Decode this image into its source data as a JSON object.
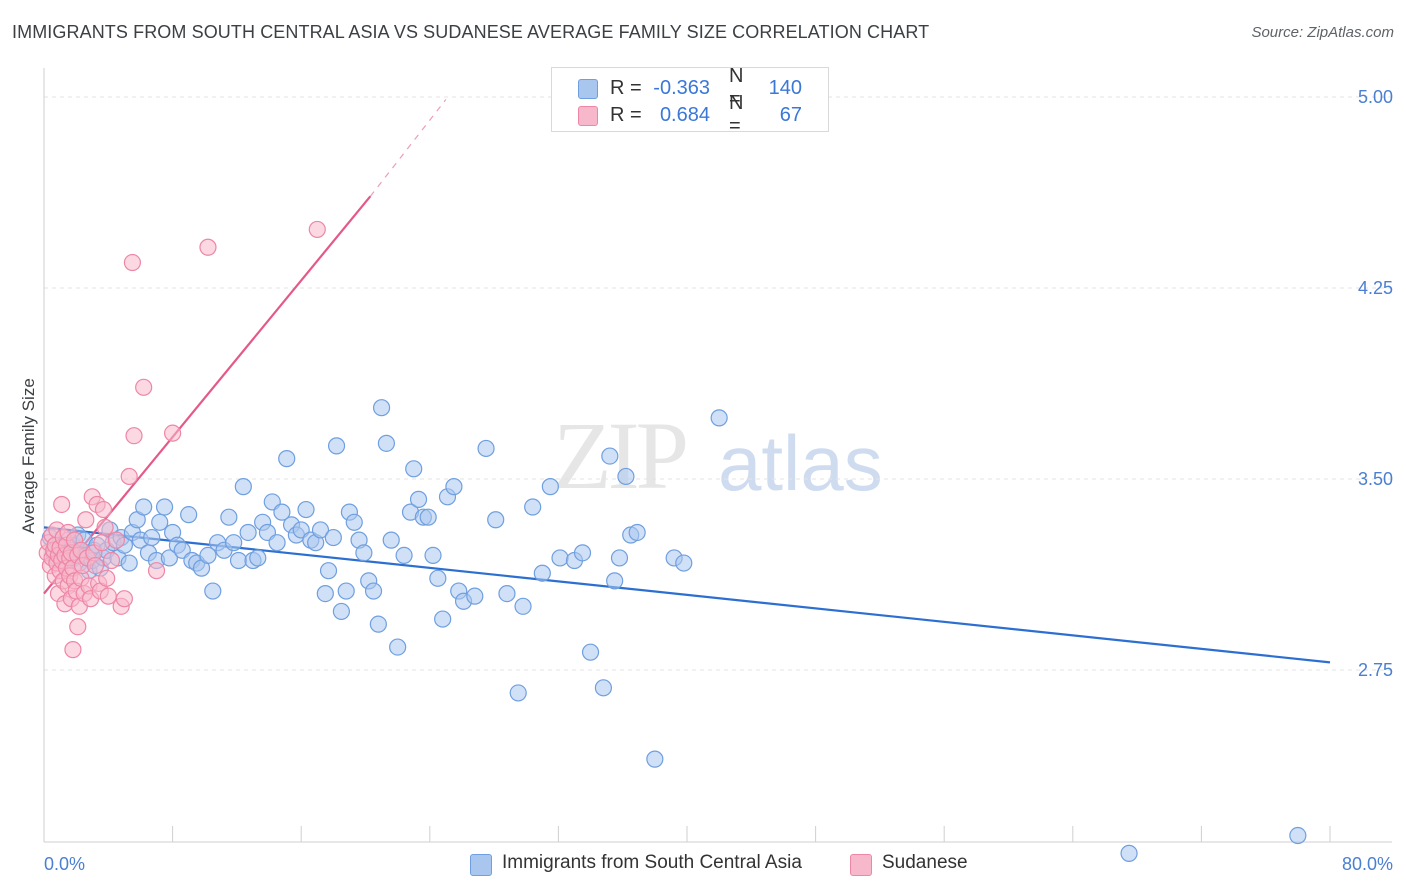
{
  "header": {
    "title": "IMMIGRANTS FROM SOUTH CENTRAL ASIA VS SUDANESE AVERAGE FAMILY SIZE CORRELATION CHART",
    "source": "Source: ZipAtlas.com"
  },
  "watermark": {
    "zip": "ZIP",
    "atlas": "atlas"
  },
  "stats_legend": [
    {
      "r_label": "R =",
      "r_value": "-0.363",
      "n_label": "N =",
      "n_value": "140",
      "color": "#a9c6ef",
      "border": "#6f9fe0"
    },
    {
      "r_label": "R =",
      "r_value": "0.684",
      "n_label": "N =",
      "n_value": "67",
      "color": "#f7b8cb",
      "border": "#ee86a6"
    }
  ],
  "bottom_legend": [
    {
      "label": "Immigrants from South Central Asia",
      "color": "#a9c6ef",
      "border": "#6f9fe0"
    },
    {
      "label": "Sudanese",
      "color": "#f7b8cb",
      "border": "#ee86a6"
    }
  ],
  "chart_data": {
    "type": "scatter",
    "title": "IMMIGRANTS FROM SOUTH CENTRAL ASIA VS SUDANESE AVERAGE FAMILY SIZE CORRELATION CHART",
    "xlabel": "",
    "ylabel": "Average Family Size",
    "xlim": [
      0,
      80
    ],
    "ylim": [
      2.0,
      5.1
    ],
    "x_tick_labels": [
      "0.0%",
      "80.0%"
    ],
    "y_ticks": [
      2.75,
      3.5,
      4.25,
      5.0
    ],
    "y_tick_labels": [
      "2.75",
      "3.50",
      "4.25",
      "5.00"
    ],
    "grid": true,
    "series": [
      {
        "name": "Immigrants from South Central Asia",
        "color": "#6f9fe0",
        "fill": "#a9c6ef",
        "line_color": "#2d6fd1",
        "trend": {
          "x": [
            0,
            80
          ],
          "y": [
            3.31,
            2.78
          ]
        },
        "points": [
          [
            0.4,
            3.27
          ],
          [
            0.6,
            3.21
          ],
          [
            0.8,
            3.19
          ],
          [
            0.9,
            3.24
          ],
          [
            1.0,
            3.21
          ],
          [
            1.1,
            3.18
          ],
          [
            1.2,
            3.23
          ],
          [
            1.3,
            3.2
          ],
          [
            1.4,
            3.21
          ],
          [
            1.5,
            3.26
          ],
          [
            1.6,
            3.18
          ],
          [
            1.7,
            3.22
          ],
          [
            1.8,
            3.24
          ],
          [
            1.9,
            3.19
          ],
          [
            2.0,
            3.21
          ],
          [
            2.1,
            3.28
          ],
          [
            2.2,
            3.17
          ],
          [
            2.3,
            3.22
          ],
          [
            2.5,
            3.26
          ],
          [
            2.6,
            3.2
          ],
          [
            2.8,
            3.14
          ],
          [
            3.0,
            3.18
          ],
          [
            3.1,
            3.22
          ],
          [
            3.3,
            3.24
          ],
          [
            3.5,
            3.15
          ],
          [
            3.7,
            3.19
          ],
          [
            3.9,
            3.22
          ],
          [
            4.1,
            3.3
          ],
          [
            4.3,
            3.25
          ],
          [
            4.6,
            3.19
          ],
          [
            4.8,
            3.27
          ],
          [
            5.0,
            3.24
          ],
          [
            5.3,
            3.17
          ],
          [
            5.5,
            3.29
          ],
          [
            5.8,
            3.34
          ],
          [
            6.0,
            3.26
          ],
          [
            6.2,
            3.39
          ],
          [
            6.5,
            3.21
          ],
          [
            6.7,
            3.27
          ],
          [
            7.0,
            3.18
          ],
          [
            7.2,
            3.33
          ],
          [
            7.5,
            3.39
          ],
          [
            7.8,
            3.19
          ],
          [
            8.0,
            3.29
          ],
          [
            8.3,
            3.24
          ],
          [
            8.6,
            3.22
          ],
          [
            9.0,
            3.36
          ],
          [
            9.2,
            3.18
          ],
          [
            9.5,
            3.17
          ],
          [
            9.8,
            3.15
          ],
          [
            10.2,
            3.2
          ],
          [
            10.5,
            3.06
          ],
          [
            10.8,
            3.25
          ],
          [
            11.2,
            3.22
          ],
          [
            11.5,
            3.35
          ],
          [
            11.8,
            3.25
          ],
          [
            12.1,
            3.18
          ],
          [
            12.4,
            3.47
          ],
          [
            12.7,
            3.29
          ],
          [
            13.0,
            3.18
          ],
          [
            13.3,
            3.19
          ],
          [
            13.6,
            3.33
          ],
          [
            13.9,
            3.29
          ],
          [
            14.2,
            3.41
          ],
          [
            14.5,
            3.25
          ],
          [
            14.8,
            3.37
          ],
          [
            15.1,
            3.58
          ],
          [
            15.4,
            3.32
          ],
          [
            15.7,
            3.28
          ],
          [
            16.0,
            3.3
          ],
          [
            16.3,
            3.38
          ],
          [
            16.6,
            3.26
          ],
          [
            16.9,
            3.25
          ],
          [
            17.2,
            3.3
          ],
          [
            17.5,
            3.05
          ],
          [
            17.7,
            3.14
          ],
          [
            18.0,
            3.27
          ],
          [
            18.2,
            3.63
          ],
          [
            18.5,
            2.98
          ],
          [
            18.8,
            3.06
          ],
          [
            19.0,
            3.37
          ],
          [
            19.3,
            3.33
          ],
          [
            19.6,
            3.26
          ],
          [
            19.9,
            3.21
          ],
          [
            20.2,
            3.1
          ],
          [
            20.5,
            3.06
          ],
          [
            20.8,
            2.93
          ],
          [
            21.0,
            3.78
          ],
          [
            21.3,
            3.64
          ],
          [
            21.6,
            3.26
          ],
          [
            22.0,
            2.84
          ],
          [
            22.4,
            3.2
          ],
          [
            22.8,
            3.37
          ],
          [
            23.0,
            3.54
          ],
          [
            23.3,
            3.42
          ],
          [
            23.6,
            3.35
          ],
          [
            23.9,
            3.35
          ],
          [
            24.2,
            3.2
          ],
          [
            24.5,
            3.11
          ],
          [
            24.8,
            2.95
          ],
          [
            25.1,
            3.43
          ],
          [
            25.5,
            3.47
          ],
          [
            25.8,
            3.06
          ],
          [
            26.1,
            3.02
          ],
          [
            26.8,
            3.04
          ],
          [
            27.5,
            3.62
          ],
          [
            28.1,
            3.34
          ],
          [
            28.8,
            3.05
          ],
          [
            29.5,
            2.66
          ],
          [
            29.8,
            3.0
          ],
          [
            30.4,
            3.39
          ],
          [
            31.0,
            3.13
          ],
          [
            31.5,
            3.47
          ],
          [
            32.1,
            3.19
          ],
          [
            33.0,
            3.18
          ],
          [
            33.5,
            3.21
          ],
          [
            34.0,
            2.82
          ],
          [
            34.8,
            2.68
          ],
          [
            35.2,
            3.59
          ],
          [
            35.5,
            3.1
          ],
          [
            35.8,
            3.19
          ],
          [
            36.2,
            3.51
          ],
          [
            36.5,
            3.28
          ],
          [
            36.9,
            3.29
          ],
          [
            38.0,
            2.4
          ],
          [
            39.2,
            3.19
          ],
          [
            39.8,
            3.17
          ],
          [
            42.0,
            3.74
          ],
          [
            67.5,
            2.03
          ],
          [
            78.0,
            2.1
          ]
        ]
      },
      {
        "name": "Sudanese",
        "color": "#ee86a6",
        "fill": "#f7b8cb",
        "line_color": "#e5588a",
        "trend": {
          "x": [
            0,
            20.3
          ],
          "y": [
            3.05,
            4.61
          ]
        },
        "trend_dashed": {
          "x": [
            20.3,
            25
          ],
          "y": [
            4.61,
            4.99
          ]
        },
        "points": [
          [
            0.2,
            3.21
          ],
          [
            0.3,
            3.25
          ],
          [
            0.4,
            3.16
          ],
          [
            0.5,
            3.19
          ],
          [
            0.5,
            3.28
          ],
          [
            0.6,
            3.22
          ],
          [
            0.7,
            3.12
          ],
          [
            0.7,
            3.24
          ],
          [
            0.8,
            3.17
          ],
          [
            0.8,
            3.3
          ],
          [
            0.9,
            3.2
          ],
          [
            0.9,
            3.05
          ],
          [
            1.0,
            3.14
          ],
          [
            1.0,
            3.23
          ],
          [
            1.1,
            3.18
          ],
          [
            1.1,
            3.4
          ],
          [
            1.2,
            3.27
          ],
          [
            1.2,
            3.1
          ],
          [
            1.3,
            3.2
          ],
          [
            1.3,
            3.01
          ],
          [
            1.4,
            3.15
          ],
          [
            1.4,
            3.24
          ],
          [
            1.5,
            3.08
          ],
          [
            1.5,
            3.29
          ],
          [
            1.6,
            3.12
          ],
          [
            1.6,
            3.19
          ],
          [
            1.7,
            3.03
          ],
          [
            1.7,
            3.21
          ],
          [
            1.8,
            3.15
          ],
          [
            1.8,
            2.83
          ],
          [
            1.9,
            3.26
          ],
          [
            1.9,
            3.1
          ],
          [
            2.0,
            3.06
          ],
          [
            2.1,
            3.2
          ],
          [
            2.1,
            2.92
          ],
          [
            2.2,
            3.0
          ],
          [
            2.3,
            3.11
          ],
          [
            2.3,
            3.22
          ],
          [
            2.4,
            3.16
          ],
          [
            2.5,
            3.05
          ],
          [
            2.6,
            3.34
          ],
          [
            2.7,
            3.19
          ],
          [
            2.8,
            3.08
          ],
          [
            2.9,
            3.03
          ],
          [
            3.0,
            3.43
          ],
          [
            3.1,
            3.21
          ],
          [
            3.2,
            3.16
          ],
          [
            3.3,
            3.4
          ],
          [
            3.4,
            3.09
          ],
          [
            3.5,
            3.06
          ],
          [
            3.6,
            3.25
          ],
          [
            3.7,
            3.38
          ],
          [
            3.8,
            3.31
          ],
          [
            3.9,
            3.11
          ],
          [
            4.0,
            3.04
          ],
          [
            4.2,
            3.18
          ],
          [
            4.5,
            3.26
          ],
          [
            4.8,
            3.0
          ],
          [
            5.0,
            3.03
          ],
          [
            5.3,
            3.51
          ],
          [
            5.5,
            4.35
          ],
          [
            5.6,
            3.67
          ],
          [
            6.2,
            3.86
          ],
          [
            7.0,
            3.14
          ],
          [
            8.0,
            3.68
          ],
          [
            10.2,
            4.41
          ],
          [
            17.0,
            4.48
          ]
        ]
      }
    ]
  }
}
